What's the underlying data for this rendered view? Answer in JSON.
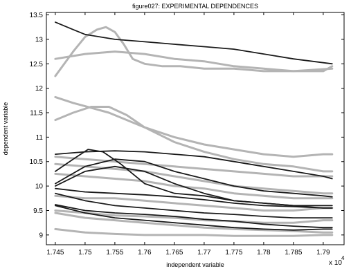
{
  "chart_data": {
    "type": "line",
    "title": "figure027: EXPERIMENTAL DEPENDENCES",
    "xlabel": "independent variable",
    "ylabel": "dependent variable",
    "x_multiplier_label": "x 10",
    "x_multiplier_exponent": "4",
    "xlim": [
      1.7435,
      1.7935
    ],
    "ylim": [
      8.8,
      13.55
    ],
    "x_ticks": [
      1.745,
      1.75,
      1.755,
      1.76,
      1.765,
      1.77,
      1.775,
      1.78,
      1.785,
      1.79
    ],
    "x_tick_labels": [
      "1.745",
      "1.75",
      "1.755",
      "1.76",
      "1.765",
      "1.77",
      "1.775",
      "1.78",
      "1.785",
      "1.79"
    ],
    "y_ticks": [
      9,
      9.5,
      10,
      10.5,
      11,
      11.5,
      12,
      12.5,
      13,
      13.5
    ],
    "y_tick_labels": [
      "9",
      "9.5",
      "10",
      "10.5",
      "11",
      "11.5",
      "12",
      "12.5",
      "13",
      "13.5"
    ],
    "grid": false,
    "legend": "none",
    "colors": {
      "dark_series": "#1a1a1a",
      "light_series": "#b4b4b4",
      "axes": "#000000"
    },
    "series": [
      {
        "color": "light",
        "x": [
          1.745,
          1.748,
          1.75,
          1.752,
          1.7535,
          1.755,
          1.7565,
          1.758,
          1.76,
          1.763,
          1.766,
          1.77,
          1.775,
          1.78,
          1.785,
          1.7915
        ],
        "y": [
          12.25,
          12.75,
          13.05,
          13.2,
          13.25,
          13.15,
          12.9,
          12.6,
          12.5,
          12.45,
          12.45,
          12.4,
          12.4,
          12.35,
          12.35,
          12.4
        ]
      },
      {
        "color": "light",
        "x": [
          1.745,
          1.75,
          1.755,
          1.76,
          1.765,
          1.77,
          1.775,
          1.78,
          1.785,
          1.79,
          1.7915
        ],
        "y": [
          12.6,
          12.7,
          12.75,
          12.7,
          12.6,
          12.55,
          12.45,
          12.4,
          12.35,
          12.35,
          12.45
        ]
      },
      {
        "color": "light",
        "x": [
          1.745,
          1.748,
          1.751,
          1.754,
          1.757,
          1.76,
          1.765,
          1.77,
          1.775,
          1.78,
          1.785,
          1.79,
          1.7915
        ],
        "y": [
          11.82,
          11.7,
          11.6,
          11.5,
          11.35,
          11.2,
          11.0,
          10.85,
          10.75,
          10.65,
          10.6,
          10.65,
          10.65
        ]
      },
      {
        "color": "light",
        "x": [
          1.745,
          1.748,
          1.751,
          1.754,
          1.757,
          1.76,
          1.765,
          1.77,
          1.775,
          1.78,
          1.785,
          1.79,
          1.7915
        ],
        "y": [
          11.35,
          11.5,
          11.62,
          11.62,
          11.45,
          11.2,
          10.9,
          10.7,
          10.55,
          10.45,
          10.4,
          10.3,
          10.3
        ]
      },
      {
        "color": "light",
        "x": [
          1.745,
          1.75,
          1.755,
          1.76,
          1.765,
          1.77,
          1.775,
          1.78,
          1.785,
          1.79,
          1.7915
        ],
        "y": [
          10.6,
          10.55,
          10.5,
          10.45,
          10.4,
          10.35,
          10.3,
          10.25,
          10.2,
          10.2,
          10.2
        ]
      },
      {
        "color": "light",
        "x": [
          1.745,
          1.75,
          1.755,
          1.76,
          1.765,
          1.77,
          1.775,
          1.78,
          1.785,
          1.79,
          1.7915
        ],
        "y": [
          10.45,
          10.4,
          10.35,
          10.3,
          10.2,
          10.1,
          10.0,
          9.95,
          9.9,
          9.85,
          9.85
        ]
      },
      {
        "color": "light",
        "x": [
          1.745,
          1.75,
          1.755,
          1.76,
          1.765,
          1.77,
          1.775,
          1.78,
          1.785,
          1.79,
          1.7915
        ],
        "y": [
          10.25,
          10.2,
          10.15,
          10.1,
          10.0,
          9.95,
          9.85,
          9.8,
          9.75,
          9.75,
          9.75
        ]
      },
      {
        "color": "light",
        "x": [
          1.745,
          1.75,
          1.755,
          1.76,
          1.765,
          1.77,
          1.775,
          1.78,
          1.785,
          1.79,
          1.7915
        ],
        "y": [
          9.8,
          9.75,
          9.75,
          9.7,
          9.65,
          9.6,
          9.55,
          9.5,
          9.5,
          9.55,
          9.55
        ]
      },
      {
        "color": "light",
        "x": [
          1.745,
          1.75,
          1.755,
          1.76,
          1.765,
          1.77,
          1.775,
          1.78,
          1.785,
          1.79,
          1.7915
        ],
        "y": [
          9.5,
          9.45,
          9.4,
          9.38,
          9.35,
          9.3,
          9.28,
          9.25,
          9.25,
          9.3,
          9.3
        ]
      },
      {
        "color": "light",
        "x": [
          1.745,
          1.75,
          1.755,
          1.76,
          1.765,
          1.77,
          1.775,
          1.78,
          1.785,
          1.79,
          1.7915
        ],
        "y": [
          9.45,
          9.35,
          9.3,
          9.25,
          9.2,
          9.15,
          9.12,
          9.1,
          9.08,
          9.05,
          9.05
        ]
      },
      {
        "color": "light",
        "x": [
          1.745,
          1.75,
          1.755,
          1.76,
          1.765,
          1.77,
          1.775,
          1.78,
          1.785,
          1.79,
          1.7915
        ],
        "y": [
          9.12,
          9.05,
          9.02,
          9.0,
          9.0,
          9.0,
          8.98,
          8.98,
          8.98,
          9.0,
          9.0
        ]
      },
      {
        "color": "dark",
        "x": [
          1.745,
          1.748,
          1.75,
          1.755,
          1.76,
          1.765,
          1.77,
          1.775,
          1.78,
          1.785,
          1.7915
        ],
        "y": [
          13.35,
          13.2,
          13.1,
          13.0,
          12.95,
          12.9,
          12.85,
          12.8,
          12.7,
          12.6,
          12.5
        ]
      },
      {
        "color": "dark",
        "x": [
          1.745,
          1.75,
          1.755,
          1.76,
          1.765,
          1.77,
          1.775,
          1.78,
          1.785,
          1.79,
          1.7915
        ],
        "y": [
          10.65,
          10.7,
          10.72,
          10.7,
          10.65,
          10.6,
          10.5,
          10.4,
          10.3,
          10.2,
          10.15
        ]
      },
      {
        "color": "dark",
        "x": [
          1.745,
          1.748,
          1.7505,
          1.753,
          1.756,
          1.76,
          1.765,
          1.77,
          1.775,
          1.78,
          1.785,
          1.79,
          1.7915
        ],
        "y": [
          10.3,
          10.55,
          10.75,
          10.7,
          10.45,
          10.05,
          9.85,
          9.8,
          9.7,
          9.65,
          9.6,
          9.6,
          9.6
        ]
      },
      {
        "color": "dark",
        "x": [
          1.745,
          1.75,
          1.755,
          1.76,
          1.765,
          1.77,
          1.775,
          1.78,
          1.785,
          1.79,
          1.7915
        ],
        "y": [
          10.05,
          10.4,
          10.55,
          10.5,
          10.3,
          10.15,
          10.0,
          9.9,
          9.85,
          9.8,
          9.78
        ]
      },
      {
        "color": "dark",
        "x": [
          1.745,
          1.75,
          1.755,
          1.76,
          1.765,
          1.77,
          1.775,
          1.78,
          1.785,
          1.79,
          1.7915
        ],
        "y": [
          10.0,
          10.3,
          10.4,
          10.3,
          10.05,
          9.85,
          9.7,
          9.65,
          9.6,
          9.55,
          9.55
        ]
      },
      {
        "color": "dark",
        "x": [
          1.745,
          1.75,
          1.755,
          1.76,
          1.765,
          1.77,
          1.775,
          1.78,
          1.785,
          1.79,
          1.7915
        ],
        "y": [
          9.95,
          9.88,
          9.85,
          9.82,
          9.78,
          9.72,
          9.65,
          9.6,
          9.58,
          9.55,
          9.55
        ]
      },
      {
        "color": "dark",
        "x": [
          1.745,
          1.75,
          1.755,
          1.76,
          1.765,
          1.77,
          1.775,
          1.78,
          1.785,
          1.79,
          1.7915
        ],
        "y": [
          9.85,
          9.7,
          9.6,
          9.55,
          9.5,
          9.45,
          9.42,
          9.38,
          9.35,
          9.35,
          9.35
        ]
      },
      {
        "color": "dark",
        "x": [
          1.745,
          1.75,
          1.755,
          1.76,
          1.765,
          1.77,
          1.775,
          1.78,
          1.785,
          1.79,
          1.7915
        ],
        "y": [
          9.62,
          9.5,
          9.45,
          9.42,
          9.38,
          9.32,
          9.28,
          9.22,
          9.18,
          9.15,
          9.15
        ]
      },
      {
        "color": "dark",
        "x": [
          1.745,
          1.75,
          1.755,
          1.76,
          1.765,
          1.77,
          1.775,
          1.78,
          1.785,
          1.79,
          1.7915
        ],
        "y": [
          9.6,
          9.45,
          9.35,
          9.3,
          9.25,
          9.2,
          9.15,
          9.12,
          9.1,
          9.12,
          9.12
        ]
      }
    ]
  }
}
